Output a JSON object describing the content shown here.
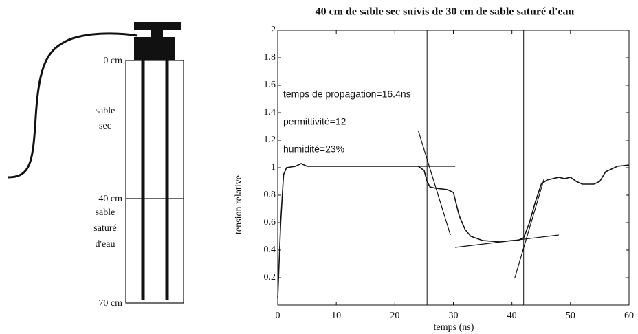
{
  "diagram": {
    "labels": {
      "top": "0 cm",
      "middle": "40 cm",
      "bottom": "70 cm"
    },
    "layer_1": [
      "sable",
      "sec"
    ],
    "layer_2": [
      "sable",
      "saturé",
      "d'eau"
    ]
  },
  "chart_data": {
    "type": "line",
    "title": "40 cm de sable sec suivis de 30 cm de sable saturé d'eau",
    "x_label": "temps (ns)",
    "y_label": "tension relative",
    "annotations": [
      "temps de propagation=16.4ns",
      "permittivité=12",
      "humidité=23%"
    ],
    "xlim": [
      0,
      60
    ],
    "ylim": [
      0,
      2
    ],
    "xticks": [
      0,
      10,
      20,
      30,
      40,
      50,
      60
    ],
    "yticks": [
      0.2,
      0.4,
      0.6,
      0.8,
      1,
      1.2,
      1.4,
      1.6,
      1.8,
      2
    ],
    "vlines": [
      25.5,
      42
    ],
    "grid": false,
    "series": [
      {
        "color": "#111",
        "x": [
          0,
          0.5,
          1,
          1.5,
          3,
          4,
          5,
          10,
          20,
          24,
          25,
          25.5,
          26,
          27,
          29,
          30,
          31,
          32,
          33,
          35,
          38,
          40,
          41,
          42,
          43,
          44,
          45,
          46,
          48,
          49,
          50,
          51,
          52,
          54,
          55,
          56,
          58,
          60
        ],
        "values": [
          0.05,
          0.6,
          0.95,
          1.0,
          1.01,
          1.03,
          1.01,
          1.01,
          1.01,
          1.01,
          0.98,
          0.9,
          0.86,
          0.85,
          0.84,
          0.82,
          0.65,
          0.55,
          0.5,
          0.47,
          0.46,
          0.47,
          0.47,
          0.49,
          0.6,
          0.75,
          0.88,
          0.91,
          0.93,
          0.92,
          0.93,
          0.9,
          0.88,
          0.88,
          0.9,
          0.97,
          1.01,
          1.02
        ]
      },
      {
        "color": "#111",
        "x": [
          24,
          29.5
        ],
        "values": [
          1.27,
          0.51
        ]
      },
      {
        "color": "#111",
        "x": [
          24,
          30.3
        ],
        "values": [
          1.01,
          1.01
        ]
      },
      {
        "color": "#111",
        "x": [
          30.3,
          48
        ],
        "values": [
          0.42,
          0.51
        ]
      },
      {
        "color": "#111",
        "x": [
          40.5,
          45.5
        ],
        "values": [
          0.2,
          0.92
        ]
      }
    ]
  }
}
